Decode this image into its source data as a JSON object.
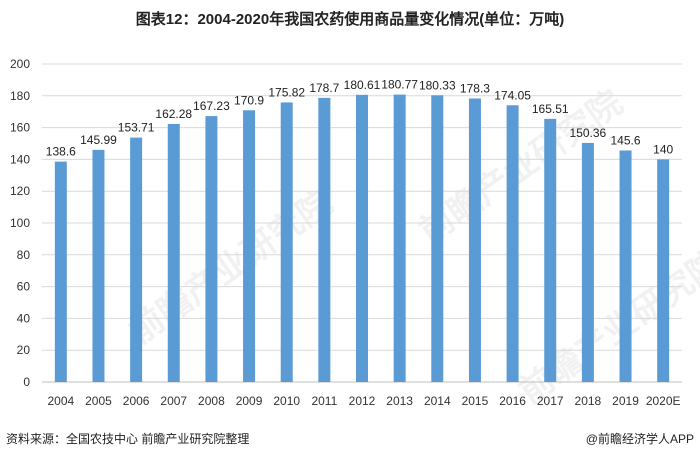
{
  "chart_data": {
    "type": "bar",
    "title": "图表12：2004-2020年我国农药使用商品量变化情况(单位：万吨)",
    "categories": [
      "2004",
      "2005",
      "2006",
      "2007",
      "2008",
      "2009",
      "2010",
      "2011",
      "2012",
      "2013",
      "2014",
      "2015",
      "2016",
      "2017",
      "2018",
      "2019",
      "2020E"
    ],
    "values": [
      138.6,
      145.99,
      153.71,
      162.28,
      167.23,
      170.9,
      175.82,
      178.7,
      180.61,
      180.77,
      180.33,
      178.3,
      174.05,
      165.51,
      150.36,
      145.6,
      140
    ],
    "value_labels": [
      "138.6",
      "145.99",
      "153.71",
      "162.28",
      "167.23",
      "170.9",
      "175.82",
      "178.7",
      "180.61",
      "180.77",
      "180.33",
      "178.3",
      "174.05",
      "165.51",
      "150.36",
      "145.6",
      "140"
    ],
    "y_ticks": [
      "0",
      "20",
      "40",
      "60",
      "80",
      "100",
      "120",
      "140",
      "160",
      "180",
      "200"
    ],
    "ylim": [
      0,
      200
    ],
    "grid": true,
    "bar_color": "#5B9BD5"
  },
  "footer": {
    "source": "资料来源：全国农技中心 前瞻产业研究院整理",
    "brand": "@前瞻经济学人APP"
  },
  "watermark": "前瞻产业研究院"
}
